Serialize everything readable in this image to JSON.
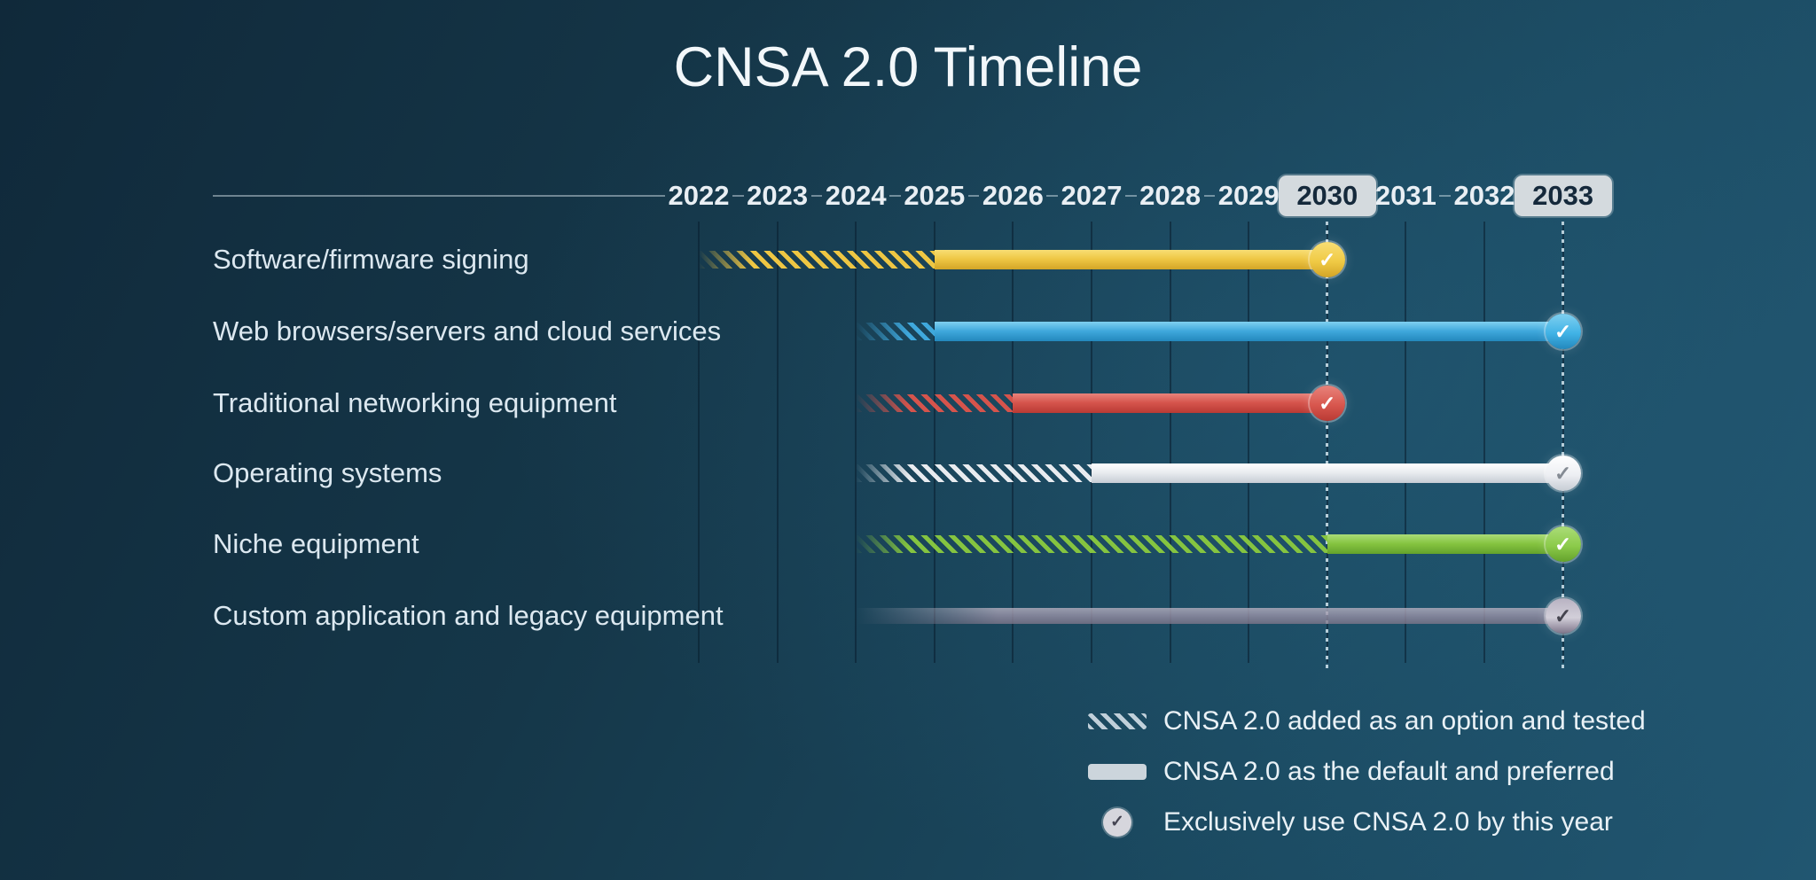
{
  "title": "CNSA 2.0 Timeline",
  "check_glyph": "✓",
  "chart_data": {
    "type": "timeline",
    "title": "CNSA 2.0 Timeline",
    "x_axis": {
      "years": [
        2022,
        2023,
        2024,
        2025,
        2026,
        2027,
        2028,
        2029,
        2030,
        2031,
        2032,
        2033
      ],
      "milestone_years": [
        2030,
        2033
      ]
    },
    "rows": [
      {
        "label": "Software/firmware signing",
        "option_tested_start": 2022,
        "default_preferred_start": 2025,
        "exclusive_by": 2030,
        "color": "#eec643",
        "color_light": "#f8de74",
        "color_dark": "#d3a527",
        "circle_fill": "#f0ca45",
        "check_color": "#ffffff"
      },
      {
        "label": "Web browsers/servers and cloud services",
        "option_tested_start": 2024,
        "default_preferred_start": 2025,
        "exclusive_by": 2033,
        "color": "#3fa8dc",
        "color_light": "#7fd0f0",
        "color_dark": "#2388bd",
        "circle_fill": "#41b3e6",
        "check_color": "#ffffff"
      },
      {
        "label": "Traditional networking equipment",
        "option_tested_start": 2024,
        "default_preferred_start": 2026,
        "exclusive_by": 2030,
        "color": "#d5544c",
        "color_light": "#e8837b",
        "color_dark": "#b93a34",
        "circle_fill": "#d8574e",
        "check_color": "#ffffff"
      },
      {
        "label": "Operating systems",
        "option_tested_start": 2024,
        "default_preferred_start": 2027,
        "exclusive_by": 2033,
        "color": "#e8ebef",
        "color_light": "#ffffff",
        "color_dark": "#c6ccd4",
        "circle_fill": "#edeff3",
        "check_color": "#858b94"
      },
      {
        "label": "Niche equipment",
        "option_tested_start": 2024,
        "default_preferred_start": 2030,
        "exclusive_by": 2033,
        "color": "#85c440",
        "color_light": "#abdc78",
        "color_dark": "#64a22c",
        "circle_fill": "#8ccb4b",
        "check_color": "#ffffff"
      },
      {
        "label": "Custom application and legacy equipment",
        "option_tested_start": null,
        "default_preferred_start": 2024,
        "exclusive_by": 2033,
        "faded": true,
        "color": "#9a92a7",
        "color_light": "#b8b2c2",
        "color_dark": "#7d7589",
        "circle_fill": "#d2cfd9",
        "check_color": "#45444f"
      }
    ],
    "legend": [
      {
        "swatch": "hatched",
        "label": "CNSA 2.0 added as an option and tested"
      },
      {
        "swatch": "solid",
        "label": "CNSA 2.0 as the default and preferred"
      },
      {
        "swatch": "check",
        "label": "Exclusively use CNSA 2.0 by this year"
      }
    ],
    "layout_hints": {
      "grid": true,
      "legend_position": "bottom-right"
    }
  },
  "colors": {
    "background_dark": "#10293a",
    "background_light": "#215671",
    "axis_text": "#e9eff4",
    "milestone_box_bg": "#d4dade",
    "milestone_box_text": "#15293b"
  }
}
